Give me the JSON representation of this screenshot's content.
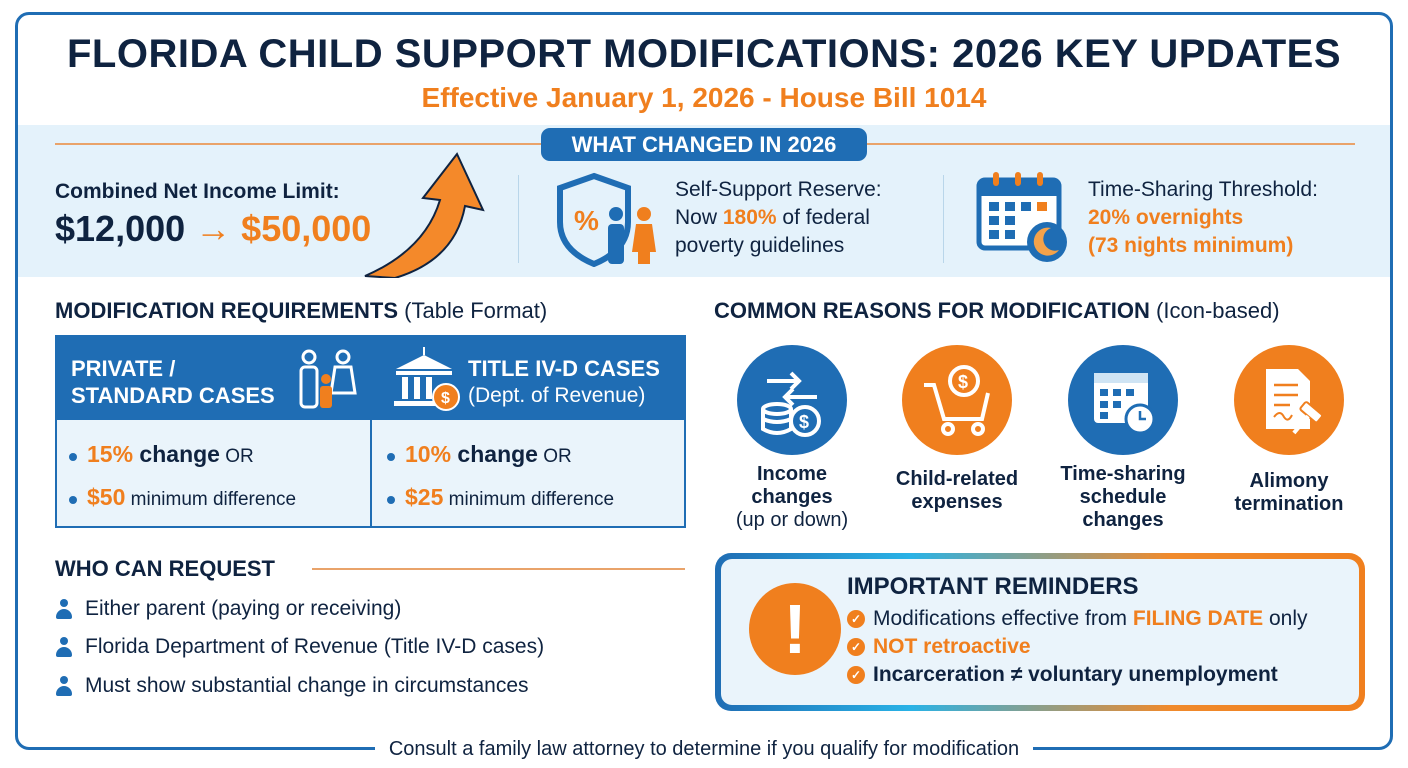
{
  "title": "FLORIDA CHILD SUPPORT MODIFICATIONS: 2026 KEY UPDATES",
  "subtitle": "Effective January 1, 2026 - House Bill 1014",
  "changes": {
    "badge": "WHAT CHANGED IN 2026",
    "income": {
      "label": "Combined Net Income Limit:",
      "old": "$12,000",
      "arrow": "→",
      "new": "$50,000"
    },
    "reserve": {
      "label": "Self-Support Reserve:",
      "pre": "Now ",
      "pct": "180%",
      "post": " of federal",
      "line3": "poverty guidelines"
    },
    "timeshare": {
      "label": "Time-Sharing Threshold:",
      "line2": "20% overnights",
      "line3": "(73 nights minimum)"
    }
  },
  "requirements": {
    "heading": "MODIFICATION REQUIREMENTS",
    "heading_note": "(Table Format)",
    "columns": [
      {
        "title1": "PRIVATE /",
        "title2": "STANDARD CASES",
        "pct": "15%",
        "change": " change",
        "or": " OR",
        "amount": "$50",
        "diff": " minimum difference"
      },
      {
        "title1": "TITLE IV-D CASES",
        "title2": "(Dept. of Revenue)",
        "pct": "10%",
        "change": " change",
        "or": " OR",
        "amount": "$25",
        "diff": " minimum difference"
      }
    ]
  },
  "who": {
    "heading": "WHO CAN REQUEST",
    "items": [
      "Either parent (paying or receiving)",
      "Florida Department of Revenue (Title IV-D cases)",
      "Must show substantial change in circumstances"
    ]
  },
  "reasons": {
    "heading": "COMMON REASONS FOR MODIFICATION",
    "heading_note": "(Icon-based)",
    "items": [
      {
        "l1": "Income",
        "l2": "changes",
        "l3": "(up or down)",
        "color": "#1f6db4"
      },
      {
        "l1": "Child-related",
        "l2": "expenses",
        "l3": "",
        "color": "#f07f1e"
      },
      {
        "l1": "Time-sharing",
        "l2": "schedule",
        "l3": "changes",
        "color": "#1f6db4"
      },
      {
        "l1": "Alimony",
        "l2": "termination",
        "l3": "",
        "color": "#f07f1e"
      }
    ]
  },
  "reminders": {
    "heading": "IMPORTANT REMINDERS",
    "r1_pre": "Modifications effective from ",
    "r1_hl": "FILING DATE",
    "r1_post": " only",
    "r2": "NOT retroactive",
    "r3": "Incarceration ≠ voluntary unemployment"
  },
  "footer": "Consult a family law attorney to determine if you qualify for modification",
  "colors": {
    "blue": "#1f6db4",
    "orange": "#f07f1e",
    "navy": "#0f2340"
  }
}
